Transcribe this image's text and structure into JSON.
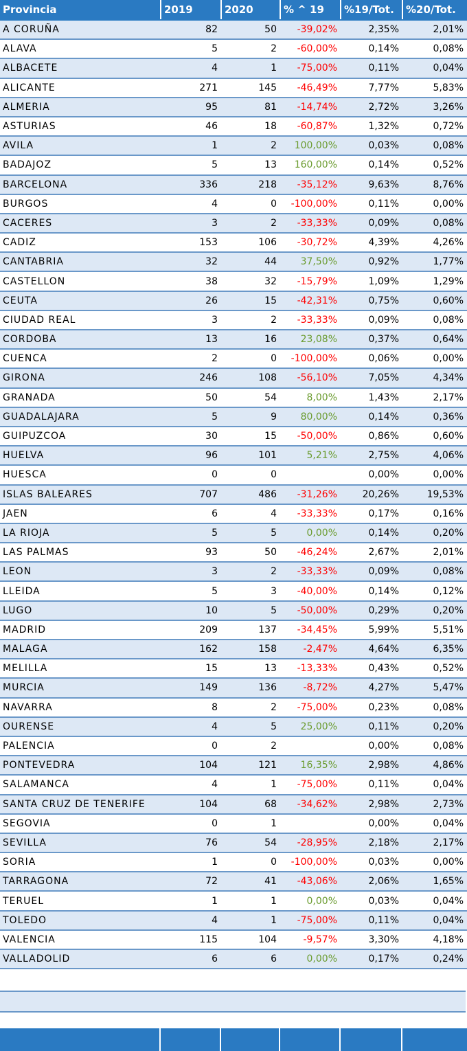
{
  "headers": [
    "Provincia",
    "2019",
    "2020",
    "% ^ 19",
    "%19/Tot.",
    "%20/Tot."
  ],
  "rows": [
    [
      "A CORUÑA",
      "82",
      "50",
      "-39,02%",
      "2,35%",
      "2,01%"
    ],
    [
      "ALAVA",
      "5",
      "2",
      "-60,00%",
      "0,14%",
      "0,08%"
    ],
    [
      "ALBACETE",
      "4",
      "1",
      "-75,00%",
      "0,11%",
      "0,04%"
    ],
    [
      "ALICANTE",
      "271",
      "145",
      "-46,49%",
      "7,77%",
      "5,83%"
    ],
    [
      "ALMERIA",
      "95",
      "81",
      "-14,74%",
      "2,72%",
      "3,26%"
    ],
    [
      "ASTURIAS",
      "46",
      "18",
      "-60,87%",
      "1,32%",
      "0,72%"
    ],
    [
      "AVILA",
      "1",
      "2",
      "100,00%",
      "0,03%",
      "0,08%"
    ],
    [
      "BADAJOZ",
      "5",
      "13",
      "160,00%",
      "0,14%",
      "0,52%"
    ],
    [
      "BARCELONA",
      "336",
      "218",
      "-35,12%",
      "9,63%",
      "8,76%"
    ],
    [
      "BURGOS",
      "4",
      "0",
      "-100,00%",
      "0,11%",
      "0,00%"
    ],
    [
      "CACERES",
      "3",
      "2",
      "-33,33%",
      "0,09%",
      "0,08%"
    ],
    [
      "CADIZ",
      "153",
      "106",
      "-30,72%",
      "4,39%",
      "4,26%"
    ],
    [
      "CANTABRIA",
      "32",
      "44",
      "37,50%",
      "0,92%",
      "1,77%"
    ],
    [
      "CASTELLON",
      "38",
      "32",
      "-15,79%",
      "1,09%",
      "1,29%"
    ],
    [
      "CEUTA",
      "26",
      "15",
      "-42,31%",
      "0,75%",
      "0,60%"
    ],
    [
      "CIUDAD REAL",
      "3",
      "2",
      "-33,33%",
      "0,09%",
      "0,08%"
    ],
    [
      "CORDOBA",
      "13",
      "16",
      "23,08%",
      "0,37%",
      "0,64%"
    ],
    [
      "CUENCA",
      "2",
      "0",
      "-100,00%",
      "0,06%",
      "0,00%"
    ],
    [
      "GIRONA",
      "246",
      "108",
      "-56,10%",
      "7,05%",
      "4,34%"
    ],
    [
      "GRANADA",
      "50",
      "54",
      "8,00%",
      "1,43%",
      "2,17%"
    ],
    [
      "GUADALAJARA",
      "5",
      "9",
      "80,00%",
      "0,14%",
      "0,36%"
    ],
    [
      "GUIPUZCOA",
      "30",
      "15",
      "-50,00%",
      "0,86%",
      "0,60%"
    ],
    [
      "HUELVA",
      "96",
      "101",
      "5,21%",
      "2,75%",
      "4,06%"
    ],
    [
      "HUESCA",
      "0",
      "0",
      "",
      "0,00%",
      "0,00%"
    ],
    [
      "ISLAS BALEARES",
      "707",
      "486",
      "-31,26%",
      "20,26%",
      "19,53%"
    ],
    [
      "JAEN",
      "6",
      "4",
      "-33,33%",
      "0,17%",
      "0,16%"
    ],
    [
      "LA RIOJA",
      "5",
      "5",
      "0,00%",
      "0,14%",
      "0,20%"
    ],
    [
      "LAS PALMAS",
      "93",
      "50",
      "-46,24%",
      "2,67%",
      "2,01%"
    ],
    [
      "LEON",
      "3",
      "2",
      "-33,33%",
      "0,09%",
      "0,08%"
    ],
    [
      "LLEIDA",
      "5",
      "3",
      "-40,00%",
      "0,14%",
      "0,12%"
    ],
    [
      "LUGO",
      "10",
      "5",
      "-50,00%",
      "0,29%",
      "0,20%"
    ],
    [
      "MADRID",
      "209",
      "137",
      "-34,45%",
      "5,99%",
      "5,51%"
    ],
    [
      "MALAGA",
      "162",
      "158",
      "-2,47%",
      "4,64%",
      "6,35%"
    ],
    [
      "MELILLA",
      "15",
      "13",
      "-13,33%",
      "0,43%",
      "0,52%"
    ],
    [
      "MURCIA",
      "149",
      "136",
      "-8,72%",
      "4,27%",
      "5,47%"
    ],
    [
      "NAVARRA",
      "8",
      "2",
      "-75,00%",
      "0,23%",
      "0,08%"
    ],
    [
      "OURENSE",
      "4",
      "5",
      "25,00%",
      "0,11%",
      "0,20%"
    ],
    [
      "PALENCIA",
      "0",
      "2",
      "",
      "0,00%",
      "0,08%"
    ],
    [
      "PONTEVEDRA",
      "104",
      "121",
      "16,35%",
      "2,98%",
      "4,86%"
    ],
    [
      "SALAMANCA",
      "4",
      "1",
      "-75,00%",
      "0,11%",
      "0,04%"
    ],
    [
      "SANTA CRUZ DE TENERIFE",
      "104",
      "68",
      "-34,62%",
      "2,98%",
      "2,73%"
    ],
    [
      "SEGOVIA",
      "0",
      "1",
      "",
      "0,00%",
      "0,04%"
    ],
    [
      "SEVILLA",
      "76",
      "54",
      "-28,95%",
      "2,18%",
      "2,17%"
    ],
    [
      "SORIA",
      "1",
      "0",
      "-100,00%",
      "0,03%",
      "0,00%"
    ],
    [
      "TARRAGONA",
      "72",
      "41",
      "-43,06%",
      "2,06%",
      "1,65%"
    ],
    [
      "TERUEL",
      "1",
      "1",
      "0,00%",
      "0,03%",
      "0,04%"
    ],
    [
      "TOLEDO",
      "4",
      "1",
      "-75,00%",
      "0,11%",
      "0,04%"
    ],
    [
      "VALENCIA",
      "115",
      "104",
      "-9,57%",
      "3,30%",
      "4,18%"
    ],
    [
      "VALLADOLID",
      "6",
      "6",
      "0,00%",
      "0,17%",
      "0,24%"
    ]
  ],
  "colors": {
    "header_bg": "#2a7ac2",
    "stripe": "#dde8f5",
    "negative": "#ff0000",
    "positive": "#6a9b2e"
  }
}
